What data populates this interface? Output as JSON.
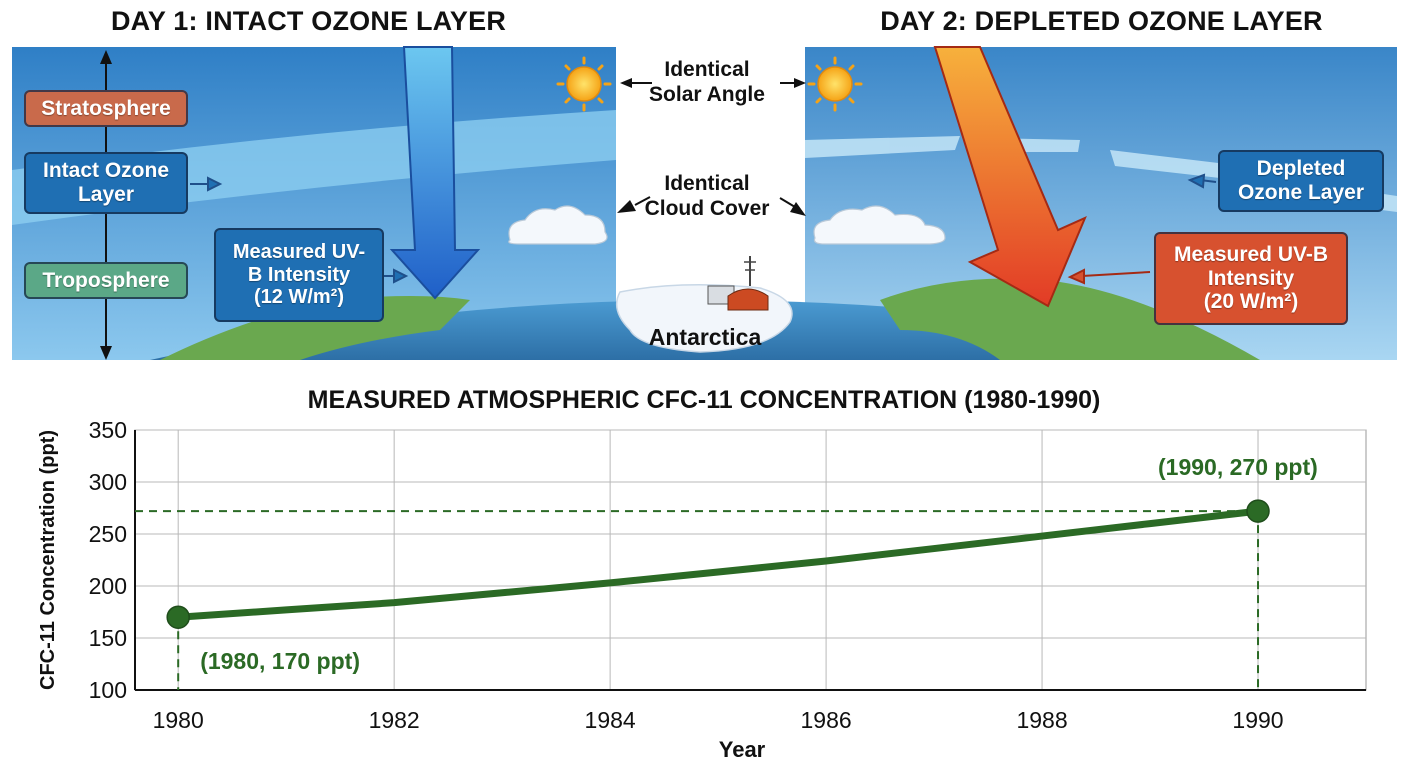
{
  "panels": {
    "day1_title": "DAY 1: INTACT OZONE LAYER",
    "day2_title": "DAY 2: DEPLETED OZONE LAYER",
    "stratosphere_label": "Stratosphere",
    "intact_ozone_label": "Intact Ozone Layer",
    "troposphere_label": "Troposphere",
    "uv_day1_label_line1": "Measured UV-",
    "uv_day1_label_line2": "B Intensity",
    "uv_day1_label_line3": "(12 W/m²)",
    "depleted_ozone_label_line1": "Depleted",
    "depleted_ozone_label_line2": "Ozone Layer",
    "uv_day2_label_line1": "Measured UV-B",
    "uv_day2_label_line2": "Intensity",
    "uv_day2_label_line3": "(20 W/m²)",
    "solar_angle_line1": "Identical",
    "solar_angle_line2": "Solar Angle",
    "cloud_cover_line1": "Identical",
    "cloud_cover_line2": "Cloud Cover",
    "antarctica_label": "Antarctica",
    "icons": [
      "sun-icon",
      "cloud-icon",
      "research-station-icon",
      "uv-arrow-icon"
    ],
    "colors": {
      "sky": "#4a98d6",
      "ozone_band": "#7cc0ea",
      "uv_day1_arrow": "#2f7fd6",
      "uv_day2_arrow": "#e8462a",
      "stratosphere_box": "#c96a4b",
      "troposphere_box": "#5ba887",
      "uv_day2_box": "#d7512f"
    }
  },
  "chart_data": {
    "type": "line",
    "title": "MEASURED ATMOSPHERIC CFC-11 CONCENTRATION (1980-1990)",
    "xlabel": "Year",
    "ylabel": "CFC-11 Concentration (ppt)",
    "xlim": [
      1979.6,
      1991
    ],
    "ylim": [
      100,
      350
    ],
    "xticks": [
      1980,
      1982,
      1984,
      1986,
      1988,
      1990
    ],
    "yticks": [
      100,
      150,
      200,
      250,
      300,
      350
    ],
    "grid": true,
    "line_color": "#2b6a25",
    "series": [
      {
        "x": [
          1980,
          1982,
          1984,
          1986,
          1988,
          1990
        ],
        "y": [
          170,
          184,
          203,
          224,
          248,
          272
        ]
      }
    ],
    "annotations": [
      {
        "x": 1980,
        "y": 170,
        "text": "(1980, 170 ppt)"
      },
      {
        "x": 1990,
        "y": 272,
        "text": "(1990, 270 ppt)"
      }
    ]
  }
}
